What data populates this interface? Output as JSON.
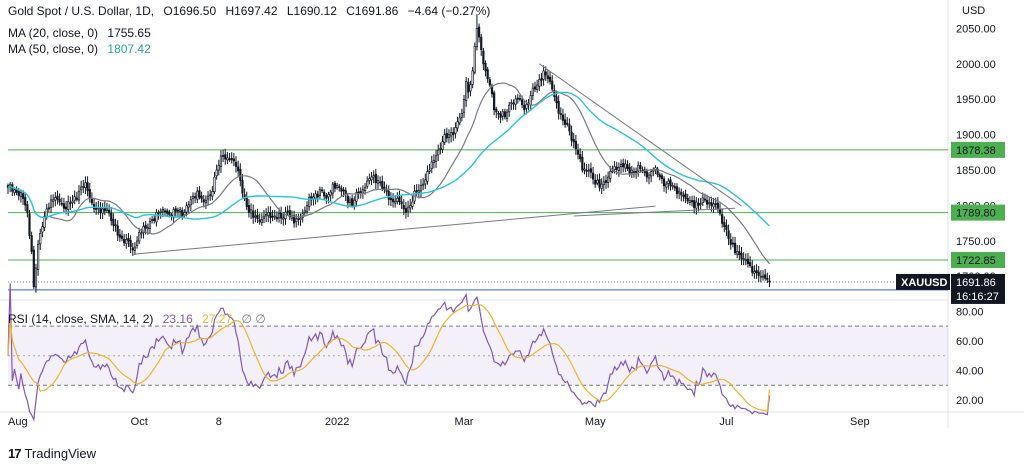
{
  "header": {
    "symbol_title": "Gold Spot / U.S. Dollar, 1D,",
    "open": "O1696.50",
    "high": "H1697.42",
    "low": "L1690.12",
    "close": "C1691.86",
    "change": "−4.64 (−0.27%)"
  },
  "indicators": {
    "ma20": {
      "label": "MA (20, close, 0)",
      "value": "1755.65",
      "color": "#787b86"
    },
    "ma50": {
      "label": "MA (50, close, 0)",
      "value": "1807.42",
      "color": "#26c6da"
    },
    "rsi": {
      "label": "RSI (14, close, SMA, 14, 2)",
      "value": "23.16",
      "ma_value": "27.27",
      "extra": "∅ ∅",
      "color": "#7e57c2",
      "ma_color": "#f0b429"
    }
  },
  "brand": {
    "name": "TradingView",
    "mark": "17"
  },
  "chart_data": {
    "type": "candlestick",
    "currency": "USD",
    "price_axis": {
      "ticks": [
        "2050.00",
        "2000.00",
        "1950.00",
        "1900.00",
        "1850.00",
        "1800.00",
        "1750.00",
        "1700.00"
      ],
      "ylim": [
        1672,
        2076
      ]
    },
    "price_badges": [
      {
        "label": "1878.38",
        "value": 1878.38,
        "color": "#4caf50"
      },
      {
        "label": "1789.80",
        "value": 1789.8,
        "color": "#4caf50"
      },
      {
        "label": "1722.85",
        "value": 1722.85,
        "color": "#4caf50"
      },
      {
        "label": "1691.86",
        "value": 1691.86,
        "color": "#131722",
        "symbol": "XAUUSD",
        "countdown": "16:16:27"
      }
    ],
    "horizontal_levels": [
      {
        "value": 1878.38,
        "color": "#4caf50"
      },
      {
        "value": 1789.8,
        "color": "#4caf50"
      },
      {
        "value": 1722.85,
        "color": "#4caf50"
      },
      {
        "value": 1680.6,
        "color": "#2962ff"
      }
    ],
    "x_axis": {
      "labels": [
        "Aug",
        "Oct",
        "8",
        "2022",
        "Mar",
        "May",
        "Jul",
        "Sep"
      ],
      "label_days": [
        0,
        61,
        98,
        153,
        212,
        273,
        334,
        396
      ],
      "xlim": [
        0,
        437
      ]
    },
    "trendlines": [
      {
        "points": [
          [
            58,
            1731
          ],
          [
            301,
            1799
          ]
        ],
        "color": "#787b86"
      },
      {
        "points": [
          [
            247,
            2000
          ],
          [
            341,
            1799
          ]
        ],
        "color": "#787b86"
      },
      {
        "points": [
          [
            263,
            1785
          ],
          [
            338,
            1796
          ]
        ],
        "color": "#787b86"
      }
    ],
    "price_anchors": [
      [
        0,
        1825
      ],
      [
        3,
        1822
      ],
      [
        6,
        1818
      ],
      [
        9,
        1790
      ],
      [
        11,
        1735
      ],
      [
        12,
        1685
      ],
      [
        14,
        1745
      ],
      [
        16,
        1770
      ],
      [
        18,
        1795
      ],
      [
        21,
        1808
      ],
      [
        24,
        1805
      ],
      [
        27,
        1795
      ],
      [
        30,
        1806
      ],
      [
        33,
        1820
      ],
      [
        36,
        1832
      ],
      [
        38,
        1810
      ],
      [
        40,
        1795
      ],
      [
        43,
        1790
      ],
      [
        46,
        1795
      ],
      [
        49,
        1772
      ],
      [
        52,
        1755
      ],
      [
        55,
        1752
      ],
      [
        58,
        1737
      ],
      [
        61,
        1762
      ],
      [
        64,
        1768
      ],
      [
        67,
        1780
      ],
      [
        70,
        1788
      ],
      [
        73,
        1792
      ],
      [
        76,
        1785
      ],
      [
        79,
        1793
      ],
      [
        82,
        1790
      ],
      [
        85,
        1808
      ],
      [
        88,
        1820
      ],
      [
        91,
        1805
      ],
      [
        94,
        1815
      ],
      [
        97,
        1850
      ],
      [
        100,
        1870
      ],
      [
        103,
        1865
      ],
      [
        106,
        1855
      ],
      [
        108,
        1835
      ],
      [
        110,
        1810
      ],
      [
        112,
        1790
      ],
      [
        115,
        1785
      ],
      [
        118,
        1780
      ],
      [
        121,
        1790
      ],
      [
        124,
        1785
      ],
      [
        127,
        1782
      ],
      [
        130,
        1792
      ],
      [
        133,
        1775
      ],
      [
        136,
        1782
      ],
      [
        139,
        1800
      ],
      [
        142,
        1812
      ],
      [
        145,
        1822
      ],
      [
        148,
        1810
      ],
      [
        151,
        1830
      ],
      [
        154,
        1825
      ],
      [
        157,
        1815
      ],
      [
        160,
        1800
      ],
      [
        163,
        1818
      ],
      [
        166,
        1825
      ],
      [
        169,
        1840
      ],
      [
        172,
        1835
      ],
      [
        175,
        1822
      ],
      [
        178,
        1808
      ],
      [
        181,
        1810
      ],
      [
        184,
        1795
      ],
      [
        187,
        1800
      ],
      [
        190,
        1820
      ],
      [
        193,
        1830
      ],
      [
        196,
        1850
      ],
      [
        199,
        1870
      ],
      [
        202,
        1890
      ],
      [
        205,
        1900
      ],
      [
        208,
        1910
      ],
      [
        211,
        1930
      ],
      [
        213,
        1975
      ],
      [
        214,
        1960
      ],
      [
        216,
        1990
      ],
      [
        218,
        2050
      ],
      [
        220,
        2020
      ],
      [
        222,
        1990
      ],
      [
        224,
        1970
      ],
      [
        226,
        1935
      ],
      [
        228,
        1930
      ],
      [
        231,
        1925
      ],
      [
        234,
        1945
      ],
      [
        237,
        1950
      ],
      [
        240,
        1935
      ],
      [
        243,
        1955
      ],
      [
        246,
        1970
      ],
      [
        249,
        1990
      ],
      [
        252,
        1975
      ],
      [
        255,
        1945
      ],
      [
        258,
        1920
      ],
      [
        261,
        1905
      ],
      [
        264,
        1880
      ],
      [
        267,
        1850
      ],
      [
        270,
        1850
      ],
      [
        273,
        1830
      ],
      [
        276,
        1830
      ],
      [
        279,
        1840
      ],
      [
        282,
        1855
      ],
      [
        285,
        1858
      ],
      [
        288,
        1852
      ],
      [
        291,
        1848
      ],
      [
        294,
        1852
      ],
      [
        297,
        1840
      ],
      [
        300,
        1850
      ],
      [
        303,
        1840
      ],
      [
        306,
        1830
      ],
      [
        309,
        1828
      ],
      [
        312,
        1820
      ],
      [
        315,
        1810
      ],
      [
        318,
        1805
      ],
      [
        321,
        1800
      ],
      [
        324,
        1808
      ],
      [
        327,
        1800
      ],
      [
        330,
        1795
      ],
      [
        333,
        1770
      ],
      [
        336,
        1745
      ],
      [
        339,
        1735
      ],
      [
        342,
        1725
      ],
      [
        345,
        1715
      ],
      [
        348,
        1705
      ],
      [
        350,
        1700
      ],
      [
        352,
        1697
      ],
      [
        354,
        1691.86
      ]
    ],
    "rsi": {
      "ylim": [
        16,
        85
      ],
      "ticks": [
        "80.00",
        "60.00",
        "40.00",
        "20.00"
      ],
      "band": [
        30,
        70
      ],
      "midline": 50,
      "last": 23.16,
      "last_ma": 27.27
    }
  }
}
